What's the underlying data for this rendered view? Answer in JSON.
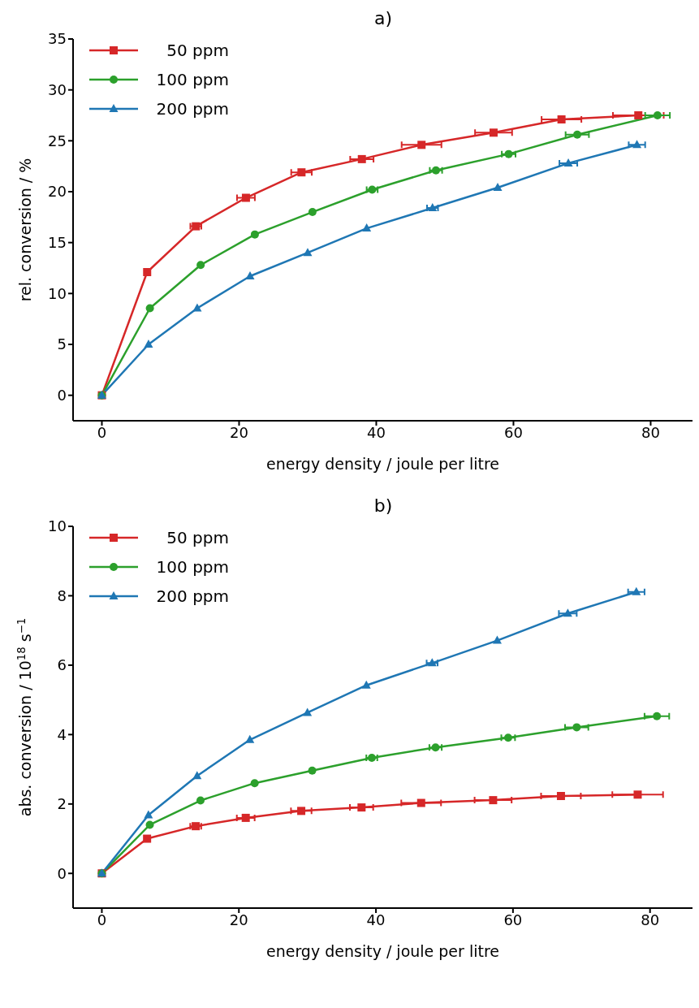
{
  "chart_data": [
    {
      "type": "line",
      "title": "a)",
      "xlabel": "energy density / joule per litre",
      "ylabel": "rel. conversion / %",
      "xlim": [
        -4.2,
        86.1
      ],
      "ylim": [
        -2.5,
        35
      ],
      "xticks": [
        0,
        20,
        40,
        60,
        80
      ],
      "yticks": [
        0,
        5,
        10,
        15,
        20,
        25,
        30,
        35
      ],
      "legend": "top left",
      "series": [
        {
          "name": "50 ppm",
          "color": "#d62728",
          "marker": "square",
          "x": [
            0,
            6.6,
            13.7,
            21.0,
            29.1,
            37.9,
            46.6,
            57.1,
            67.0,
            78.2
          ],
          "values": [
            0,
            12.1,
            16.6,
            19.4,
            21.9,
            23.2,
            24.6,
            25.8,
            27.1,
            27.5
          ],
          "xerrors": [
            null,
            null,
            0.8,
            1.3,
            1.5,
            1.7,
            2.9,
            2.7,
            2.9,
            3.7
          ]
        },
        {
          "name": "100 ppm",
          "color": "#2ca02c",
          "marker": "circle",
          "x": [
            0,
            7.0,
            14.4,
            22.3,
            30.7,
            39.4,
            48.7,
            59.3,
            69.3,
            81.0
          ],
          "values": [
            0,
            8.55,
            12.8,
            15.8,
            18.0,
            20.2,
            22.1,
            23.7,
            25.6,
            27.5
          ],
          "xerrors": [
            null,
            null,
            null,
            null,
            null,
            0.8,
            0.9,
            1.0,
            1.7,
            1.8
          ]
        },
        {
          "name": "200 ppm",
          "color": "#1f77b4",
          "marker": "triangle",
          "x": [
            0,
            6.8,
            13.9,
            21.6,
            30.0,
            38.6,
            48.2,
            57.7,
            68.0,
            78.0
          ],
          "values": [
            0,
            5.0,
            8.55,
            11.7,
            14.0,
            16.4,
            18.4,
            20.4,
            22.8,
            24.6
          ],
          "xerrors": [
            null,
            null,
            null,
            null,
            null,
            null,
            0.8,
            null,
            1.3,
            1.2
          ]
        }
      ]
    },
    {
      "type": "line",
      "title": "b)",
      "xlabel": "energy density / joule per litre",
      "ylabel": "abs. conversion / 10$^{18}$ s$^{−1}$",
      "xlim": [
        -4.2,
        86.2
      ],
      "ylim": [
        -1,
        10
      ],
      "xticks": [
        0,
        20,
        40,
        60,
        80
      ],
      "yticks": [
        0,
        2,
        4,
        6,
        8,
        10
      ],
      "legend": "top left",
      "series": [
        {
          "name": "50 ppm",
          "color": "#d62728",
          "marker": "square",
          "x": [
            0,
            6.6,
            13.7,
            21.0,
            29.1,
            37.9,
            46.6,
            57.1,
            67.0,
            78.2
          ],
          "values": [
            0,
            1.0,
            1.36,
            1.6,
            1.8,
            1.9,
            2.03,
            2.11,
            2.23,
            2.27
          ],
          "xerrors": [
            null,
            null,
            0.8,
            1.3,
            1.5,
            1.7,
            2.9,
            2.7,
            2.9,
            3.7
          ]
        },
        {
          "name": "100 ppm",
          "color": "#2ca02c",
          "marker": "circle",
          "x": [
            0,
            7.0,
            14.4,
            22.3,
            30.7,
            39.4,
            48.7,
            59.3,
            69.3,
            81.0
          ],
          "values": [
            0,
            1.4,
            2.1,
            2.6,
            2.96,
            3.33,
            3.63,
            3.91,
            4.21,
            4.53
          ],
          "xerrors": [
            null,
            null,
            null,
            null,
            null,
            0.8,
            0.9,
            1.0,
            1.7,
            1.8
          ]
        },
        {
          "name": "200 ppm",
          "color": "#1f77b4",
          "marker": "triangle",
          "x": [
            0,
            6.8,
            13.9,
            21.6,
            30.0,
            38.6,
            48.2,
            57.7,
            68.0,
            78.0
          ],
          "values": [
            0,
            1.68,
            2.81,
            3.85,
            4.63,
            5.42,
            6.06,
            6.71,
            7.49,
            8.11
          ],
          "xerrors": [
            null,
            null,
            null,
            null,
            null,
            null,
            0.8,
            null,
            1.3,
            1.2
          ]
        }
      ]
    }
  ]
}
